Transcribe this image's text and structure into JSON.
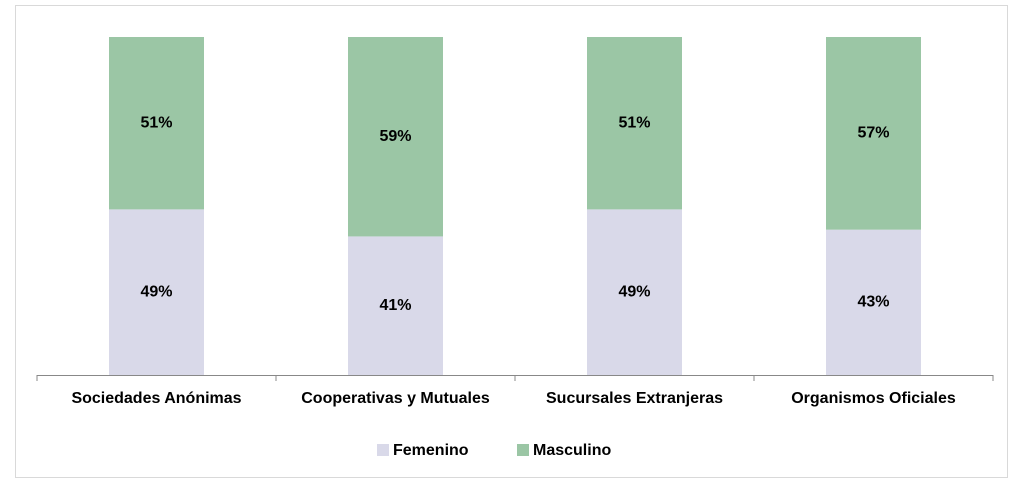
{
  "chart_data": {
    "type": "bar",
    "stacked": true,
    "categories": [
      "Sociedades Anónimas",
      "Cooperativas y Mutuales",
      "Sucursales Extranjeras",
      "Organismos Oficiales"
    ],
    "series": [
      {
        "name": "Femenino",
        "color": "#d9d9e9",
        "values": [
          49,
          41,
          49,
          43
        ],
        "value_labels": [
          "49%",
          "41%",
          "49%",
          "43%"
        ]
      },
      {
        "name": "Masculino",
        "color": "#9bc6a5",
        "values": [
          51,
          59,
          51,
          57
        ],
        "value_labels": [
          "51%",
          "59%",
          "51%",
          "57%"
        ]
      }
    ],
    "ylim": [
      0,
      100
    ],
    "legend": "bottom"
  }
}
